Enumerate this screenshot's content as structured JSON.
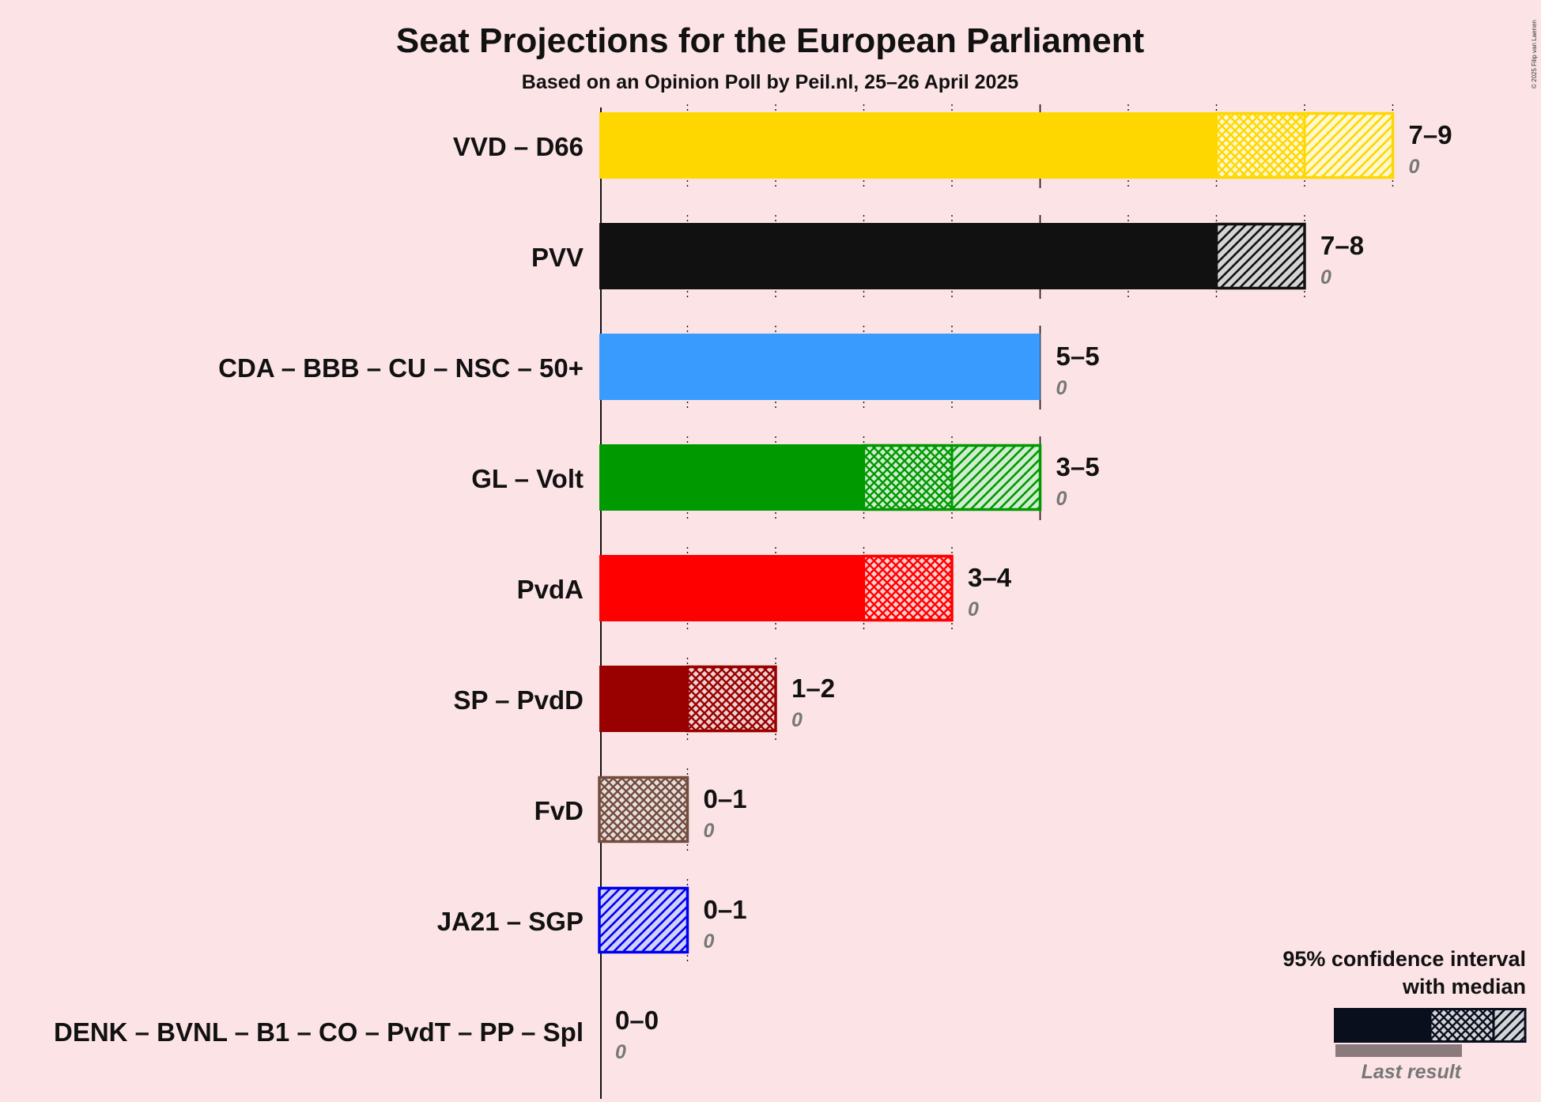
{
  "chart_data": {
    "type": "bar",
    "title": "Seat Projections for the European Parliament",
    "subtitle": "Based on an Opinion Poll by Peil.nl, 25–26 April 2025",
    "copyright": "© 2025 Filip van Laenen",
    "xlim": [
      0,
      9
    ],
    "categories": [
      "VVD – D66",
      "PVV",
      "CDA – BBB – CU – NSC – 50+",
      "GL – Volt",
      "PvdA",
      "SP – PvdD",
      "FvD",
      "JA21 – SGP",
      "DENK – BVNL – B1 – CO – PvdT – PP – Spl"
    ],
    "series": [
      {
        "party": "VVD – D66",
        "low": 7,
        "median": 8,
        "high": 9,
        "range_label": "7–9",
        "last_result": 0,
        "last_label": "0",
        "color": "#FFD700"
      },
      {
        "party": "PVV",
        "low": 7,
        "median": 7,
        "high": 8,
        "range_label": "7–8",
        "last_result": 0,
        "last_label": "0",
        "color": "#111111"
      },
      {
        "party": "CDA – BBB – CU – NSC – 50+",
        "low": 5,
        "median": 5,
        "high": 5,
        "range_label": "5–5",
        "last_result": 0,
        "last_label": "0",
        "color": "#3A9BFF"
      },
      {
        "party": "GL – Volt",
        "low": 3,
        "median": 4,
        "high": 5,
        "range_label": "3–5",
        "last_result": 0,
        "last_label": "0",
        "color": "#009900"
      },
      {
        "party": "PvdA",
        "low": 3,
        "median": 4,
        "high": 4,
        "range_label": "3–4",
        "last_result": 0,
        "last_label": "0",
        "color": "#FF0000"
      },
      {
        "party": "SP – PvdD",
        "low": 1,
        "median": 2,
        "high": 2,
        "range_label": "1–2",
        "last_result": 0,
        "last_label": "0",
        "color": "#990000"
      },
      {
        "party": "FvD",
        "low": 0,
        "median": 1,
        "high": 1,
        "range_label": "0–1",
        "last_result": 0,
        "last_label": "0",
        "color": "#734C3E"
      },
      {
        "party": "JA21 – SGP",
        "low": 0,
        "median": 0,
        "high": 1,
        "range_label": "0–1",
        "last_result": 0,
        "last_label": "0",
        "color": "#0000EE"
      },
      {
        "party": "DENK – BVNL – B1 – CO – PvdT – PP – Spl",
        "low": 0,
        "median": 0,
        "high": 0,
        "range_label": "0–0",
        "last_result": 0,
        "last_label": "0",
        "color": "#777777"
      }
    ],
    "legend": {
      "line1": "95% confidence interval",
      "line2": "with median",
      "last_result_label": "Last result",
      "placement": "bottom-right"
    }
  }
}
